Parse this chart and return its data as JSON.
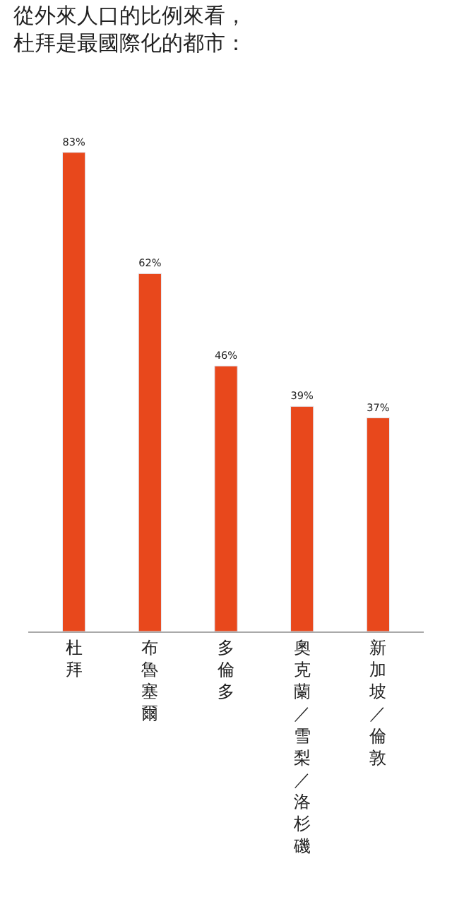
{
  "chart_data": {
    "type": "bar",
    "title": "從外來人口的比例來看，杜拜是最國際化的都市：",
    "categories": [
      "杜拜",
      "布魯塞爾",
      "多倫多",
      "奧克蘭／雪梨／洛杉磯",
      "新加坡／倫敦"
    ],
    "values": [
      83,
      62,
      46,
      39,
      37
    ],
    "value_labels": [
      "83%",
      "62%",
      "46%",
      "39%",
      "37%"
    ],
    "color": "#e8481c",
    "tick_labels": "x"
  }
}
